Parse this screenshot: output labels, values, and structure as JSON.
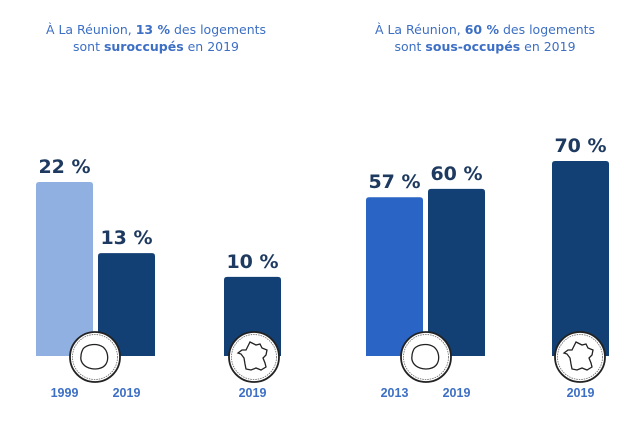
{
  "colors": {
    "light_blue": "#8fb0e0",
    "mid_blue": "#2a64c4",
    "navy": "#123f74",
    "title_blue": "#3d6fc4",
    "value_text": "#1e3a60"
  },
  "chart_data": [
    {
      "type": "bar",
      "title_parts": [
        {
          "text": "À La Réunion, ",
          "bold": false
        },
        {
          "text": "13 %",
          "bold": true
        },
        {
          "text": " des logements",
          "bold": false
        },
        {
          "text": "\n",
          "bold": false
        },
        {
          "text": "sont ",
          "bold": false
        },
        {
          "text": "suroccupés",
          "bold": true
        },
        {
          "text": " en 2019",
          "bold": false
        }
      ],
      "title": "À La Réunion, 13 % des logements sont suroccupés en 2019",
      "unit": "%",
      "ylim": [
        0,
        30
      ],
      "groups": [
        {
          "region": "La Réunion",
          "icon": "reunion-map-icon",
          "bars": [
            {
              "category": "1999",
              "value": 22,
              "label": "22 %",
              "color": "#8fb0e0"
            },
            {
              "category": "2019",
              "value": 13,
              "label": "13 %",
              "color": "#123f74"
            }
          ]
        },
        {
          "region": "France",
          "icon": "france-map-icon",
          "bars": [
            {
              "category": "2019",
              "value": 10,
              "label": "10 %",
              "color": "#123f74"
            }
          ]
        }
      ]
    },
    {
      "type": "bar",
      "title_parts": [
        {
          "text": "À La Réunion, ",
          "bold": false
        },
        {
          "text": "60 %",
          "bold": true
        },
        {
          "text": " des logements",
          "bold": false
        },
        {
          "text": "\n",
          "bold": false
        },
        {
          "text": "sont ",
          "bold": false
        },
        {
          "text": "sous-occupés",
          "bold": true
        },
        {
          "text": " en 2019",
          "bold": false
        }
      ],
      "title": "À La Réunion, 60 % des logements sont sous-occupés en 2019",
      "unit": "%",
      "ylim": [
        0,
        85
      ],
      "groups": [
        {
          "region": "La Réunion",
          "icon": "reunion-map-icon",
          "bars": [
            {
              "category": "2013",
              "value": 57,
              "label": "57 %",
              "color": "#2a64c4"
            },
            {
              "category": "2019",
              "value": 60,
              "label": "60 %",
              "color": "#123f74"
            }
          ]
        },
        {
          "region": "France",
          "icon": "france-map-icon",
          "bars": [
            {
              "category": "2019",
              "value": 70,
              "label": "70 %",
              "color": "#123f74"
            }
          ]
        }
      ]
    }
  ]
}
